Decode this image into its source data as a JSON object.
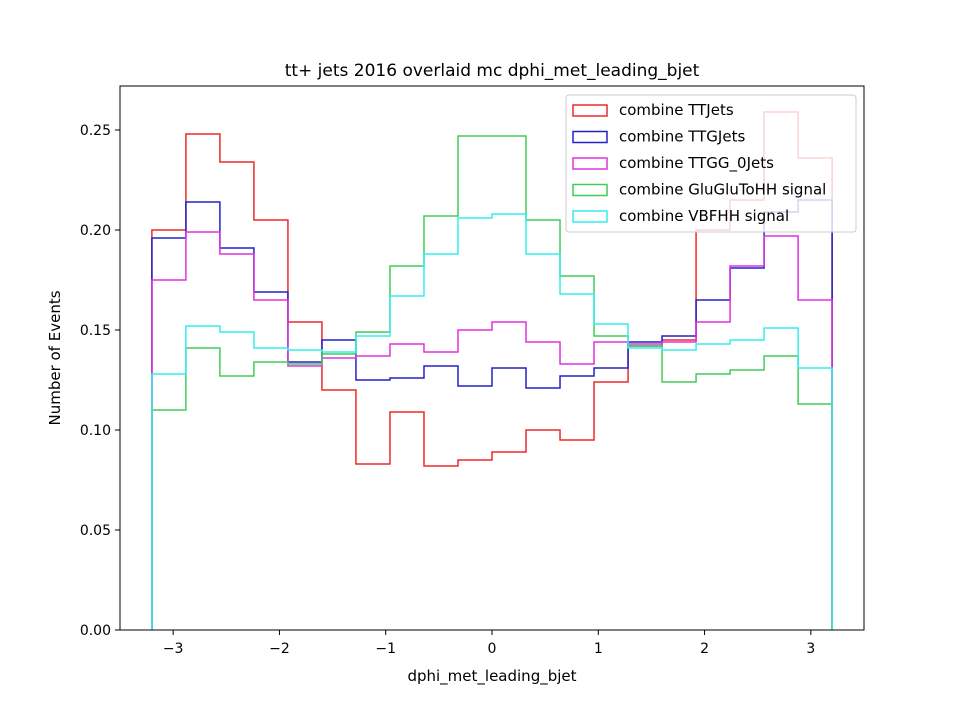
{
  "chart_data": {
    "type": "histogram-step",
    "title": "tt+ jets 2016 overlaid mc dphi_met_leading_bjet",
    "xlabel": "dphi_met_leading_bjet",
    "ylabel": "Number of Events",
    "xlim": [
      -3.5,
      3.5
    ],
    "ylim": [
      0.0,
      0.272
    ],
    "xticks": [
      -3,
      -2,
      -1,
      0,
      1,
      2,
      3
    ],
    "xtick_labels": [
      "−3",
      "−2",
      "−1",
      "0",
      "1",
      "2",
      "3"
    ],
    "yticks": [
      0.0,
      0.05,
      0.1,
      0.15,
      0.2,
      0.25
    ],
    "ytick_labels": [
      "0.00",
      "0.05",
      "0.10",
      "0.15",
      "0.20",
      "0.25"
    ],
    "bin_edges": [
      -3.2,
      -2.88,
      -2.56,
      -2.24,
      -1.92,
      -1.6,
      -1.28,
      -0.96,
      -0.64,
      -0.32,
      0.0,
      0.32,
      0.64,
      0.96,
      1.28,
      1.6,
      1.92,
      2.24,
      2.56,
      2.88,
      3.2
    ],
    "legend_position": "upper right",
    "series": [
      {
        "name": "combine TTJets",
        "color": "#ee2a2a",
        "values": [
          0.2,
          0.248,
          0.234,
          0.205,
          0.154,
          0.12,
          0.083,
          0.109,
          0.082,
          0.085,
          0.089,
          0.1,
          0.095,
          0.124,
          0.142,
          0.145,
          0.2,
          0.215,
          0.259,
          0.236
        ]
      },
      {
        "name": "combine TTGJets",
        "color": "#2222cc",
        "values": [
          0.196,
          0.214,
          0.191,
          0.169,
          0.134,
          0.145,
          0.125,
          0.126,
          0.132,
          0.122,
          0.131,
          0.121,
          0.127,
          0.131,
          0.144,
          0.147,
          0.165,
          0.181,
          0.209,
          0.215
        ]
      },
      {
        "name": "combine TTGG_0Jets",
        "color": "#dd33dd",
        "values": [
          0.175,
          0.199,
          0.188,
          0.165,
          0.132,
          0.136,
          0.137,
          0.143,
          0.139,
          0.15,
          0.154,
          0.144,
          0.133,
          0.144,
          0.143,
          0.144,
          0.154,
          0.182,
          0.197,
          0.165
        ]
      },
      {
        "name": "combine GluGluToHH signal",
        "color": "#44cc55",
        "values": [
          0.11,
          0.141,
          0.127,
          0.134,
          0.133,
          0.138,
          0.149,
          0.182,
          0.207,
          0.247,
          0.247,
          0.205,
          0.177,
          0.147,
          0.142,
          0.124,
          0.128,
          0.13,
          0.137,
          0.113
        ]
      },
      {
        "name": "combine VBFHH signal",
        "color": "#33eeee",
        "values": [
          0.128,
          0.152,
          0.149,
          0.141,
          0.14,
          0.139,
          0.147,
          0.167,
          0.188,
          0.206,
          0.208,
          0.188,
          0.168,
          0.153,
          0.141,
          0.14,
          0.143,
          0.145,
          0.151,
          0.131
        ]
      }
    ]
  }
}
